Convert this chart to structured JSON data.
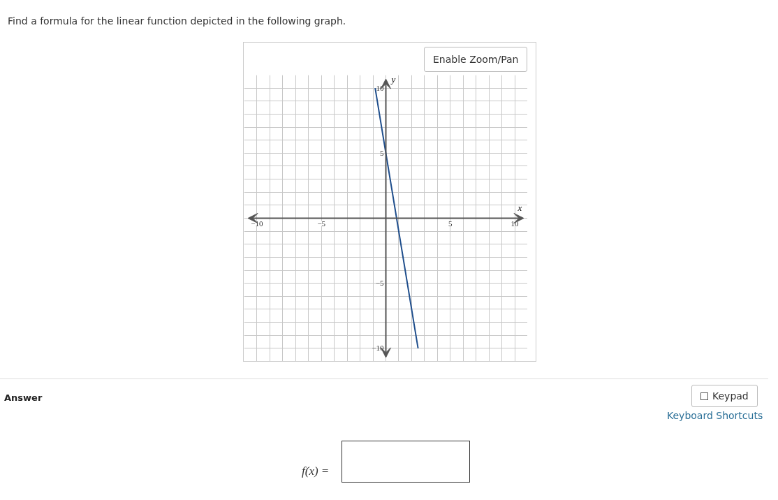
{
  "chart_data": {
    "type": "line",
    "title": "Find a formula for the linear function depicted in the following graph.",
    "xlabel": "x",
    "ylabel": "y",
    "x": [
      -0.83,
      0,
      2.5
    ],
    "series": [
      {
        "color": "#1f4e8c",
        "values": [
          10,
          5,
          -10
        ]
      }
    ],
    "xlim": [
      -11,
      11
    ],
    "ylim": [
      -11,
      11
    ],
    "xticks": [
      -10,
      {
        "value": -9,
        "label": null
      },
      {
        "value": -8,
        "label": null
      },
      {
        "value": -7,
        "label": null
      },
      {
        "value": -6,
        "label": null
      },
      -5,
      {
        "value": -4,
        "label": null
      },
      {
        "value": -3,
        "label": null
      },
      {
        "value": -2,
        "label": null
      },
      {
        "value": -1,
        "label": null
      },
      {
        "value": 0,
        "label": null
      },
      {
        "value": 1,
        "label": null
      },
      {
        "value": 2,
        "label": null
      },
      {
        "value": 3,
        "label": null
      },
      {
        "value": 4,
        "label": null
      },
      5,
      {
        "value": 6,
        "label": null
      },
      {
        "value": 7,
        "label": null
      },
      {
        "value": 8,
        "label": null
      },
      {
        "value": 9,
        "label": null
      },
      10
    ],
    "yticks": [
      -10,
      {
        "value": -9,
        "label": null
      },
      {
        "value": -8,
        "label": null
      },
      {
        "value": -7,
        "label": null
      },
      {
        "value": -6,
        "label": null
      },
      -5,
      {
        "value": -4,
        "label": null
      },
      {
        "value": -3,
        "label": null
      },
      {
        "value": -2,
        "label": null
      },
      {
        "value": -1,
        "label": null
      },
      {
        "value": 0,
        "label": null
      },
      {
        "value": 1,
        "label": null
      },
      {
        "value": 2,
        "label": null
      },
      {
        "value": 3,
        "label": null
      },
      {
        "value": 4,
        "label": null
      },
      5,
      {
        "value": 6,
        "label": null
      },
      {
        "value": 7,
        "label": null
      },
      {
        "value": 8,
        "label": null
      },
      {
        "value": 9,
        "label": null
      },
      10
    ],
    "grid": true,
    "line_style": "solid",
    "marker": "none",
    "annotations": [
      "Enable Zoom/Pan",
      "Answer",
      "Keypad",
      "Keyboard Shortcuts",
      "f(x) ="
    ]
  }
}
